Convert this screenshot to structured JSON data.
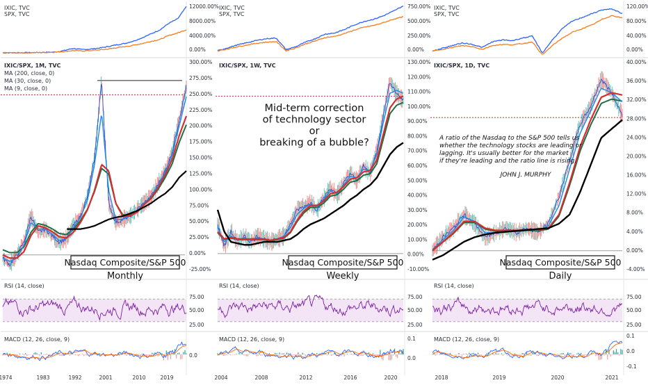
{
  "chart_data": [
    {
      "type": "line",
      "panel": "monthly",
      "top_pane": {
        "legend": [
          "IXIC, TVC",
          "SPX, TVC"
        ],
        "ticks": [
          "12000.00%",
          "8000.00%",
          "4000.00%",
          "0.00%"
        ],
        "ylim": [
          -400,
          13500
        ],
        "series": [
          {
            "name": "IXIC, TVC",
            "color": "#2962ff",
            "values": [
              0,
              5,
              15,
              40,
              80,
              120,
              200,
              600,
              1200,
              900,
              1000,
              1300,
              1700,
              2200,
              2600,
              3300,
              4200,
              5300,
              6400,
              8200,
              9400,
              12800
            ]
          },
          {
            "name": "SPX, TVC",
            "color": "#f57c1f",
            "values": [
              0,
              4,
              10,
              25,
              60,
              100,
              180,
              350,
              600,
              500,
              600,
              800,
              1000,
              1400,
              1700,
              2100,
              2600,
              3200,
              3700,
              4800,
              5500,
              6400
            ]
          }
        ]
      },
      "main_pane": {
        "legend": [
          "IXIC/SPX, 1M, TVC",
          "MA (200, close, 0)",
          "MA (30, close, 0)",
          "MA (9, close, 0)"
        ],
        "ticks": [
          "300.00%",
          "275.00%",
          "250.00%",
          "225.00%",
          "200.00%",
          "175.00%",
          "150.00%",
          "125.00%",
          "100.00%",
          "75.00%",
          "50.00%",
          "25.00%",
          "0.00%",
          "-25.00%"
        ],
        "ylim": [
          -25,
          300
        ],
        "caption": "Nasdaq Composite/S&P 500",
        "subtitle": "Monthly",
        "x": [
          1974,
          1976,
          1978,
          1980,
          1982,
          1984,
          1986,
          1988,
          1990,
          1992,
          1994,
          1996,
          1998,
          1999,
          2000,
          2001,
          2002,
          2004,
          2006,
          2008,
          2010,
          2012,
          2014,
          2016,
          2018,
          2020,
          2021
        ],
        "ratio": [
          -5,
          -15,
          0,
          20,
          60,
          35,
          40,
          30,
          20,
          25,
          45,
          60,
          90,
          150,
          270,
          80,
          50,
          55,
          60,
          70,
          80,
          90,
          110,
          130,
          160,
          210,
          260
        ],
        "ma9": [
          -5,
          -10,
          -5,
          15,
          50,
          40,
          40,
          32,
          22,
          25,
          42,
          58,
          85,
          140,
          220,
          100,
          55,
          55,
          60,
          68,
          80,
          90,
          108,
          128,
          155,
          200,
          245
        ],
        "ma30": [
          0,
          -5,
          -5,
          5,
          30,
          45,
          42,
          36,
          28,
          26,
          35,
          50,
          70,
          100,
          140,
          130,
          80,
          60,
          60,
          66,
          78,
          88,
          104,
          124,
          148,
          185,
          215
        ],
        "ma200": [
          null,
          null,
          null,
          null,
          null,
          null,
          null,
          null,
          null,
          null,
          40,
          40,
          42,
          45,
          50,
          55,
          58,
          60,
          64,
          68,
          74,
          80,
          88,
          95,
          105,
          120,
          130
        ],
        "ref_line": 248,
        "top_line": 270
      },
      "rsi": {
        "label": "RSI (14, close)",
        "ticks": [
          "75.00",
          "50.00",
          "25.00"
        ],
        "band": [
          30,
          70
        ]
      },
      "macd": {
        "label": "MACD (12, 26, close, 9)",
        "ticks": [
          "0.0"
        ]
      },
      "xticks": [
        "1974",
        "1983",
        "1992",
        "2001",
        "2010",
        "2019"
      ]
    },
    {
      "type": "line",
      "panel": "weekly",
      "top_pane": {
        "legend": [
          "IXIC, TVC",
          "SPX, TVC"
        ],
        "ticks": [
          "750.00%",
          "500.00%",
          "250.00%",
          "0.00%"
        ],
        "ylim": [
          -50,
          820
        ],
        "series": [
          {
            "name": "IXIC, TVC",
            "color": "#2962ff",
            "values": [
              10,
              60,
              110,
              150,
              190,
              220,
              230,
              30,
              80,
              160,
              220,
              300,
              320,
              380,
              460,
              520,
              560,
              620,
              700,
              790
            ]
          },
          {
            "name": "SPX, TVC",
            "color": "#f57c1f",
            "values": [
              5,
              40,
              80,
              110,
              140,
              160,
              170,
              10,
              60,
              130,
              180,
              240,
              260,
              310,
              370,
              420,
              450,
              500,
              560,
              600
            ]
          }
        ]
      },
      "main_pane": {
        "legend": [
          "IXIC/SPX, 1W, TVC"
        ],
        "ticks": [
          "130.00%",
          "120.00%",
          "110.00%",
          "100.00%",
          "90.00%",
          "80.00%",
          "70.00%",
          "60.00%",
          "50.00%",
          "40.00%",
          "30.00%",
          "20.00%",
          "10.00%",
          "0.00%",
          "-10.00%"
        ],
        "ylim": [
          -12,
          132
        ],
        "annotation": [
          "Mid-term correction",
          "of technology sector",
          "or",
          "breaking of a bubble?"
        ],
        "caption": "Nasdaq Composite/S&P 500",
        "subtitle": "Weekly",
        "x": [
          2004,
          2004.5,
          2005,
          2005.5,
          2006,
          2006.5,
          2007,
          2007.5,
          2008,
          2008.5,
          2009,
          2009.5,
          2010,
          2011,
          2012,
          2013,
          2014,
          2015,
          2016,
          2017,
          2018,
          2018.5,
          2019,
          2019.5,
          2020,
          2020.5,
          2020.8,
          2021,
          2021.2
        ],
        "ratio": [
          20,
          5,
          15,
          8,
          12,
          8,
          12,
          10,
          8,
          10,
          12,
          20,
          30,
          32,
          35,
          30,
          38,
          45,
          40,
          48,
          55,
          50,
          60,
          55,
          70,
          95,
          118,
          110,
          105
        ],
        "ma_fast": [
          18,
          8,
          12,
          9,
          11,
          9,
          11,
          10,
          9,
          10,
          12,
          18,
          27,
          31,
          34,
          32,
          37,
          43,
          41,
          47,
          53,
          52,
          58,
          57,
          68,
          90,
          110,
          112,
          110
        ],
        "ma_mid": [
          15,
          10,
          11,
          10,
          10,
          10,
          10,
          10,
          9,
          10,
          11,
          15,
          23,
          29,
          33,
          33,
          36,
          41,
          42,
          46,
          51,
          52,
          56,
          57,
          64,
          82,
          100,
          106,
          108
        ],
        "ma_slow": [
          30,
          15,
          8,
          7,
          6,
          6,
          7,
          8,
          8,
          8,
          9,
          10,
          13,
          17,
          20,
          22,
          24,
          27,
          30,
          33,
          37,
          40,
          44,
          47,
          52,
          60,
          68,
          73,
          76
        ],
        "ref_line": 108
      },
      "rsi": {
        "label": "RSI (14, close)",
        "ticks": [
          "75.00",
          "50.00",
          "25.00"
        ],
        "band": [
          30,
          70
        ]
      },
      "macd": {
        "label": "MACD (12, 26, close, 9)",
        "ticks": [
          "0.1",
          "0.0"
        ]
      },
      "xticks": [
        "2004",
        "2008",
        "2012",
        "2016",
        "2020"
      ]
    },
    {
      "type": "line",
      "panel": "daily",
      "top_pane": {
        "legend": [
          "IXIC, TVC",
          "SPX, TVC"
        ],
        "ticks": [
          "120.00%",
          "80.00%",
          "40.00%",
          "0.00%"
        ],
        "ylim": [
          -8,
          125
        ],
        "series": [
          {
            "name": "IXIC, TVC",
            "color": "#2962ff",
            "values": [
              0,
              8,
              15,
              22,
              18,
              10,
              25,
              30,
              28,
              35,
              40,
              -5,
              30,
              60,
              80,
              90,
              100,
              110,
              112,
              100
            ]
          },
          {
            "name": "SPX, TVC",
            "color": "#f57c1f",
            "values": [
              0,
              5,
              10,
              15,
              12,
              5,
              15,
              18,
              17,
              20,
              25,
              -10,
              15,
              35,
              50,
              60,
              70,
              85,
              95,
              88
            ]
          }
        ]
      },
      "main_pane": {
        "legend": [
          "IXIC/SPX, 1D, TVC"
        ],
        "ticks": [
          "40.00%",
          "36.00%",
          "32.00%",
          "28.00%",
          "24.00%",
          "20.00%",
          "16.00%",
          "12.00%",
          "8.00%",
          "4.00%",
          "0.00%",
          "-4.00%"
        ],
        "ylim": [
          -4.5,
          42
        ],
        "quote": [
          "A ratio of the Nasdaq to the S&P 500 tells us",
          "whether the technology stocks are leading or",
          "lagging. It's usually better for the market",
          "if they're leading and the ratio line is rising."
        ],
        "author": "JOHN J. MURPHY",
        "caption": "Nasdaq Composite/S&P 500",
        "subtitle": "Daily",
        "x": [
          2017.8,
          2018,
          2018.2,
          2018.4,
          2018.6,
          2018.8,
          2019,
          2019.2,
          2019.4,
          2019.6,
          2019.8,
          2020,
          2020.2,
          2020.4,
          2020.6,
          2020.8,
          2021,
          2021.1,
          2021.2
        ],
        "ratio": [
          0,
          3,
          5,
          8,
          6,
          3,
          4,
          5,
          4,
          5,
          4,
          6,
          12,
          20,
          28,
          32,
          38,
          35,
          30
        ],
        "ma_fast": [
          0,
          2.5,
          4.5,
          7.5,
          6.5,
          4,
          4,
          4.5,
          4.5,
          4.8,
          4.5,
          5.5,
          10,
          18,
          26,
          31,
          36,
          35,
          33
        ],
        "ma_mid": [
          0,
          2,
          4,
          6.5,
          6.5,
          5,
          4.5,
          4.5,
          4.5,
          4.7,
          4.6,
          5,
          8,
          15,
          23,
          29,
          34,
          35,
          34.5
        ],
        "ma_slow": [
          -2,
          -1,
          0.5,
          2,
          3,
          3.6,
          4,
          4.2,
          4.4,
          4.6,
          4.8,
          5,
          6,
          8,
          13,
          19,
          25,
          27,
          29
        ],
        "ref_line": 29.5
      },
      "rsi": {
        "label": "RSI (14, close)",
        "ticks": [
          "75.00",
          "50.00",
          "25.00"
        ],
        "band": [
          30,
          70
        ]
      },
      "macd": {
        "label": "MACD (12, 26, close, 9)",
        "ticks": [
          "0.1",
          "0.0",
          "-0.1"
        ]
      },
      "xticks": [
        "2018",
        "2019",
        "2020",
        "2021"
      ]
    }
  ]
}
